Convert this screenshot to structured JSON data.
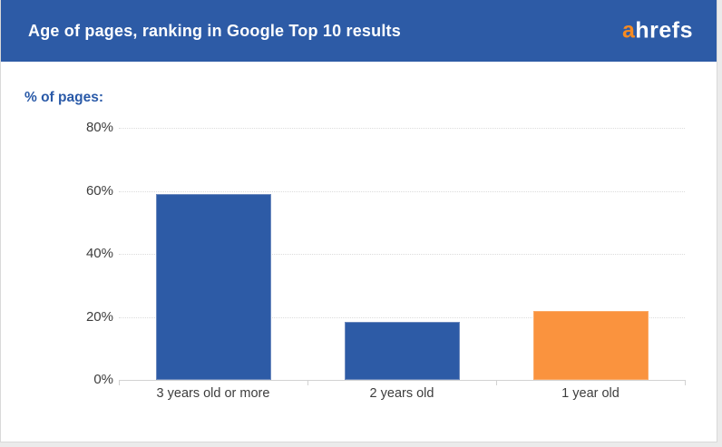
{
  "header": {
    "title": "Age of pages, ranking in Google Top 10 results",
    "logo": {
      "prefix": "a",
      "suffix": "hrefs"
    }
  },
  "chart_data": {
    "type": "bar",
    "title": "Age of pages, ranking in Google Top 10 results",
    "ylabel": "% of pages:",
    "xlabel": "",
    "categories": [
      "3 years old or more",
      "2 years old",
      "1 year old"
    ],
    "values": [
      59,
      18.5,
      22
    ],
    "bar_colors": [
      "#2d5ba6",
      "#2d5ba6",
      "#fa933e"
    ],
    "bar_border_colors": [
      "#6c89bd",
      "#6c89bd",
      "#fbaa66"
    ],
    "yticks": [
      80,
      60,
      40,
      20,
      0
    ],
    "ytick_suffix": "%",
    "ylim": [
      0,
      80
    ],
    "grid": "horizontal-dotted",
    "legend": "none"
  },
  "colors": {
    "header_bg": "#2d5ba6",
    "title_text": "#ffffff",
    "logo_orange": "#f78b21",
    "logo_white": "#ffffff",
    "axis_label_blue": "#2a5aa8",
    "tick_text": "#3d3d3d",
    "gridline": "#dcdcdc",
    "baseline": "#d2d2d2"
  }
}
